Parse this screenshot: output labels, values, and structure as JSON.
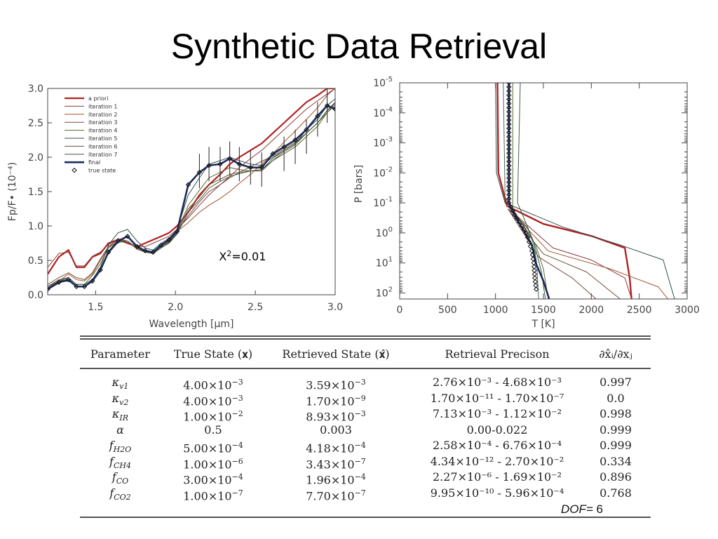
{
  "title": "Synthetic Data Retrieval",
  "chart_data": [
    {
      "type": "line",
      "xlabel": "Wavelength [μm]",
      "ylabel": "Fp/F• (10⁻⁴)",
      "xlim": [
        1.2,
        3.0
      ],
      "ylim": [
        0.0,
        3.0
      ],
      "xticks": [
        "1.5",
        "2.0",
        "2.5",
        "3.0"
      ],
      "yticks": [
        "0.0",
        "0.5",
        "1.0",
        "1.5",
        "2.0",
        "2.5",
        "3.0"
      ],
      "legend_position": "top-left",
      "annotation": "X²=0.01",
      "x": [
        1.2,
        1.27,
        1.33,
        1.38,
        1.43,
        1.48,
        1.53,
        1.58,
        1.64,
        1.7,
        1.76,
        1.81,
        1.86,
        1.91,
        1.96,
        2.01,
        2.08,
        2.15,
        2.21,
        2.28,
        2.34,
        2.4,
        2.47,
        2.54,
        2.61,
        2.68,
        2.75,
        2.82,
        2.89,
        2.95,
        3.0
      ],
      "errors_x": [
        2.15,
        2.21,
        2.28,
        2.34,
        2.4,
        2.47,
        2.54,
        2.68,
        2.75,
        2.82,
        2.89,
        2.95
      ],
      "errors_y": [
        1.8,
        1.9,
        1.9,
        1.98,
        1.9,
        1.85,
        1.82,
        2.05,
        2.15,
        2.3,
        2.55,
        2.75
      ],
      "error_half": 0.25,
      "series": [
        {
          "name": "a priori",
          "color": "#b22222",
          "width": 2.2,
          "values": [
            0.3,
            0.55,
            0.65,
            0.4,
            0.4,
            0.55,
            0.6,
            0.75,
            0.8,
            0.75,
            0.7,
            0.75,
            0.8,
            0.85,
            0.9,
            1.0,
            1.2,
            1.45,
            1.6,
            1.75,
            1.9,
            2.0,
            2.1,
            2.2,
            2.35,
            2.5,
            2.65,
            2.8,
            2.9,
            3.0,
            3.0
          ]
        },
        {
          "name": "iteration 1",
          "color": "#8b3a3a",
          "width": 1,
          "values": [
            0.4,
            0.6,
            0.62,
            0.42,
            0.42,
            0.56,
            0.62,
            0.73,
            0.8,
            0.76,
            0.7,
            0.7,
            0.75,
            0.8,
            0.85,
            0.95,
            1.12,
            1.3,
            1.45,
            1.6,
            1.72,
            1.85,
            1.98,
            2.1,
            2.25,
            2.4,
            2.55,
            2.7,
            2.82,
            2.92,
            3.0
          ]
        },
        {
          "name": "iteration 2",
          "color": "#a0522d",
          "width": 1,
          "values": [
            0.1,
            0.2,
            0.3,
            0.22,
            0.2,
            0.3,
            0.5,
            0.68,
            0.82,
            0.78,
            0.66,
            0.62,
            0.6,
            0.7,
            0.78,
            0.92,
            1.05,
            1.2,
            1.3,
            1.4,
            1.5,
            1.62,
            1.75,
            1.9,
            2.05,
            2.22,
            2.38,
            2.55,
            2.72,
            2.9,
            3.0
          ]
        },
        {
          "name": "iteration 3",
          "color": "#7a4a3a",
          "width": 1,
          "values": [
            0.15,
            0.25,
            0.32,
            0.25,
            0.22,
            0.32,
            0.52,
            0.7,
            0.8,
            0.78,
            0.68,
            0.64,
            0.62,
            0.7,
            0.78,
            0.92,
            1.15,
            1.35,
            1.5,
            1.6,
            1.7,
            1.78,
            1.86,
            1.94,
            2.02,
            2.12,
            2.22,
            2.35,
            2.5,
            2.65,
            2.75
          ]
        },
        {
          "name": "iteration 4",
          "color": "#556b2f",
          "width": 1,
          "values": [
            0.12,
            0.22,
            0.25,
            0.15,
            0.15,
            0.28,
            0.45,
            0.68,
            0.78,
            0.78,
            0.68,
            0.63,
            0.6,
            0.7,
            0.77,
            0.92,
            1.3,
            1.52,
            1.7,
            1.78,
            1.85,
            1.82,
            1.8,
            1.82,
            1.95,
            2.05,
            2.15,
            2.3,
            2.45,
            2.65,
            2.78
          ]
        },
        {
          "name": "iteration 5",
          "color": "#2f4f4f",
          "width": 1,
          "values": [
            0.1,
            0.2,
            0.25,
            0.15,
            0.15,
            0.22,
            0.4,
            0.72,
            0.9,
            0.95,
            0.78,
            0.68,
            0.65,
            0.75,
            0.82,
            0.95,
            1.45,
            1.7,
            1.9,
            1.95,
            2.0,
            1.95,
            1.9,
            1.88,
            2.0,
            2.1,
            2.2,
            2.4,
            2.55,
            2.75,
            2.85
          ]
        },
        {
          "name": "iteration 6",
          "color": "#6b4f3a",
          "width": 1,
          "values": [
            0.12,
            0.2,
            0.22,
            0.12,
            0.12,
            0.2,
            0.38,
            0.62,
            0.78,
            0.78,
            0.68,
            0.62,
            0.6,
            0.68,
            0.76,
            0.9,
            1.25,
            1.42,
            1.6,
            1.68,
            1.75,
            1.78,
            1.8,
            1.8,
            1.95,
            2.08,
            2.18,
            2.35,
            2.5,
            2.68,
            2.8
          ]
        },
        {
          "name": "iteration 7",
          "color": "#3f5f3f",
          "width": 1,
          "values": [
            0.1,
            0.18,
            0.2,
            0.12,
            0.12,
            0.2,
            0.35,
            0.6,
            0.76,
            0.78,
            0.68,
            0.62,
            0.6,
            0.68,
            0.75,
            0.88,
            1.2,
            1.38,
            1.55,
            1.65,
            1.72,
            1.76,
            1.8,
            1.82,
            1.98,
            2.1,
            2.2,
            2.35,
            2.5,
            2.68,
            2.78
          ]
        },
        {
          "name": "final",
          "color": "#1e2a5a",
          "width": 2.6,
          "values": [
            0.08,
            0.18,
            0.22,
            0.12,
            0.12,
            0.2,
            0.36,
            0.62,
            0.78,
            0.85,
            0.7,
            0.64,
            0.62,
            0.72,
            0.8,
            0.92,
            1.6,
            1.78,
            1.88,
            1.9,
            1.98,
            1.9,
            1.85,
            1.85,
            2.05,
            2.15,
            2.25,
            2.4,
            2.6,
            2.75,
            2.7
          ]
        },
        {
          "name": "true state",
          "color": "#111111",
          "width": 0,
          "marker": "diamond",
          "values": [
            0.08,
            0.18,
            0.22,
            0.12,
            0.12,
            0.2,
            0.36,
            0.62,
            0.78,
            0.85,
            0.7,
            0.64,
            0.62,
            0.72,
            0.8,
            0.92,
            1.6,
            1.78,
            1.88,
            1.9,
            1.98,
            1.9,
            1.85,
            1.85,
            2.05,
            2.15,
            2.25,
            2.4,
            2.6,
            2.75,
            2.7
          ]
        }
      ]
    },
    {
      "type": "line",
      "xlabel": "T [K]",
      "ylabel": "P [bars]",
      "xlim": [
        0,
        3000
      ],
      "ylog": true,
      "ylim_exp": [
        -5,
        2.2
      ],
      "ylim_reversed": true,
      "xticks": [
        "0",
        "500",
        "1000",
        "1500",
        "2000",
        "2500",
        "3000"
      ],
      "yticks": [
        {
          "base": "10",
          "exp": "-5",
          "value": -5
        },
        {
          "base": "10",
          "exp": "-4",
          "value": -4
        },
        {
          "base": "10",
          "exp": "-3",
          "value": -3
        },
        {
          "base": "10",
          "exp": "-2",
          "value": -2
        },
        {
          "base": "10",
          "exp": "-1",
          "value": -1
        },
        {
          "base": "10",
          "exp": "0",
          "value": 0
        },
        {
          "base": "10",
          "exp": "1",
          "value": 1
        },
        {
          "base": "10",
          "exp": "2",
          "value": 2
        }
      ],
      "profiles": [
        {
          "color": "#b22222",
          "width": 2.4,
          "points": [
            [
              1020,
              -5.2
            ],
            [
              1030,
              -2.0
            ],
            [
              1120,
              -0.9
            ],
            [
              1500,
              -0.3
            ],
            [
              2000,
              0.1
            ],
            [
              2350,
              0.5
            ],
            [
              2400,
              1.5
            ],
            [
              2420,
              2.2
            ]
          ]
        },
        {
          "color": "#2f4f4f",
          "width": 1,
          "points": [
            [
              1000,
              -5.2
            ],
            [
              1010,
              -2.0
            ],
            [
              1100,
              -1.0
            ],
            [
              1700,
              -0.2
            ],
            [
              2300,
              0.4
            ],
            [
              2750,
              0.9
            ],
            [
              2850,
              2.0
            ],
            [
              2870,
              2.2
            ]
          ]
        },
        {
          "color": "#8b3a3a",
          "width": 1,
          "points": [
            [
              1140,
              -0.8
            ],
            [
              1600,
              0.5
            ],
            [
              2000,
              0.9
            ],
            [
              2350,
              1.5
            ],
            [
              2420,
              2.2
            ]
          ]
        },
        {
          "color": "#a0522d",
          "width": 1,
          "points": [
            [
              1140,
              -0.8
            ],
            [
              1550,
              0.6
            ],
            [
              2200,
              1.2
            ],
            [
              2700,
              1.8
            ],
            [
              2800,
              2.2
            ]
          ]
        },
        {
          "color": "#6b4f3a",
          "width": 1,
          "points": [
            [
              1130,
              -0.8
            ],
            [
              1500,
              0.7
            ],
            [
              1950,
              1.3
            ],
            [
              2300,
              2.2
            ]
          ]
        },
        {
          "color": "#7a4a3a",
          "width": 1,
          "points": [
            [
              1130,
              -0.8
            ],
            [
              1450,
              0.8
            ],
            [
              1800,
              1.5
            ],
            [
              2050,
              2.2
            ]
          ]
        },
        {
          "color": "#556b2f",
          "width": 1,
          "points": [
            [
              1180,
              -5.2
            ],
            [
              1180,
              -0.8
            ],
            [
              1420,
              0.4
            ],
            [
              1500,
              1.2
            ],
            [
              1550,
              2.2
            ]
          ]
        },
        {
          "color": "#3f5f3f",
          "width": 1,
          "points": [
            [
              1260,
              -5.2
            ],
            [
              1230,
              -1.0
            ],
            [
              1400,
              0.3
            ],
            [
              1480,
              1.3
            ],
            [
              1520,
              2.2
            ]
          ]
        },
        {
          "color": "#4a6a5a",
          "width": 1,
          "points": [
            [
              1080,
              -5.2
            ],
            [
              1100,
              -1.2
            ],
            [
              1200,
              -0.6
            ],
            [
              1330,
              -0.2
            ],
            [
              1400,
              0.4
            ],
            [
              1430,
              1.0
            ],
            [
              1450,
              2.2
            ]
          ]
        },
        {
          "color": "#1e2a5a",
          "width": 2.6,
          "points": [
            [
              1140,
              -5.2
            ],
            [
              1140,
              -1.0
            ],
            [
              1200,
              -0.6
            ],
            [
              1380,
              0.4
            ],
            [
              1420,
              1.0
            ],
            [
              1500,
              1.6
            ],
            [
              1560,
              2.2
            ]
          ]
        },
        {
          "color": "#111111",
          "width": 0,
          "marker": "diamond",
          "points": [
            [
              1140,
              -5.0
            ],
            [
              1140,
              -1.0
            ],
            [
              1200,
              -0.6
            ],
            [
              1320,
              0.0
            ],
            [
              1380,
              0.6
            ],
            [
              1400,
              1.0
            ],
            [
              1410,
              1.5
            ],
            [
              1430,
              2.0
            ]
          ]
        }
      ]
    }
  ],
  "table": {
    "headers": [
      "Parameter",
      "True State (𝐱)",
      "Retrieved State (𝐱̂)",
      "Retrieval Precison",
      "∂x̂ᵢ/∂xⱼ"
    ],
    "rows": [
      {
        "param": "κ",
        "sub": "v1",
        "true": "4.00×10",
        "true_exp": "−3",
        "ret": "3.59×10",
        "ret_exp": "−3",
        "prec": "2.76×10⁻³ - 4.68×10⁻³",
        "deriv": "0.997"
      },
      {
        "param": "κ",
        "sub": "v2",
        "true": "4.00×10",
        "true_exp": "−3",
        "ret": "1.70×10",
        "ret_exp": "−9",
        "prec": "1.70×10⁻¹¹ - 1.70×10⁻⁷",
        "deriv": "0.0"
      },
      {
        "param": "κ",
        "sub": "IR",
        "true": "1.00×10",
        "true_exp": "−2",
        "ret": "8.93×10",
        "ret_exp": "−3",
        "prec": "7.13×10⁻³ - 1.12×10⁻²",
        "deriv": "0.998"
      },
      {
        "param": "α",
        "sub": "",
        "true": "0.5",
        "true_exp": "",
        "ret": "0.003",
        "ret_exp": "",
        "prec": "0.00-0.022",
        "deriv": "0.999"
      },
      {
        "param": "f",
        "sub": "H2O",
        "true": "5.00×10",
        "true_exp": "−4",
        "ret": "4.18×10",
        "ret_exp": "−4",
        "prec": "2.58×10⁻⁴ - 6.76×10⁻⁴",
        "deriv": "0.999"
      },
      {
        "param": "f",
        "sub": "CH4",
        "true": "1.00×10",
        "true_exp": "−6",
        "ret": "3.43×10",
        "ret_exp": "−7",
        "prec": "4.34×10⁻¹² - 2.70×10⁻²",
        "deriv": "0.334"
      },
      {
        "param": "f",
        "sub": "CO",
        "true": "3.00×10",
        "true_exp": "−4",
        "ret": "1.96×10",
        "ret_exp": "−4",
        "prec": "2.27×10⁻⁶ - 1.69×10⁻²",
        "deriv": "0.896"
      },
      {
        "param": "f",
        "sub": "CO2",
        "true": "1.00×10",
        "true_exp": "−7",
        "ret": "7.70×10",
        "ret_exp": "−7",
        "prec": "9.95×10⁻¹⁰ - 5.96×10⁻⁴",
        "deriv": "0.768"
      }
    ],
    "dof_label": "DOF=",
    "dof_value": " 6"
  }
}
